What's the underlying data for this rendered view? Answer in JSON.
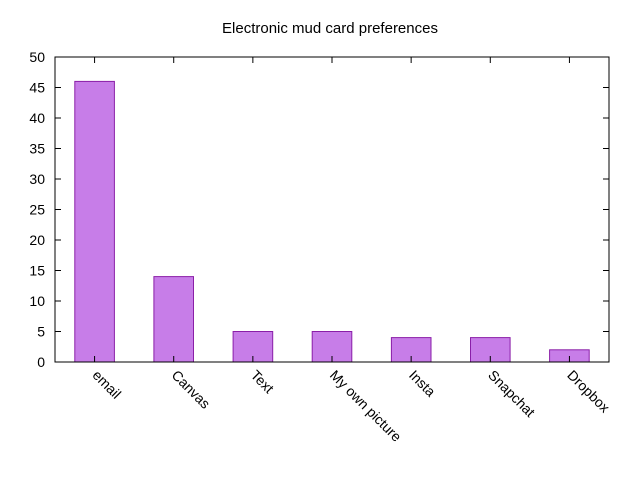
{
  "chart_data": {
    "type": "bar",
    "title": "Electronic mud card preferences",
    "xlabel": "",
    "ylabel": "",
    "categories": [
      "email",
      "Canvas",
      "Text",
      "My own picture",
      "Insta",
      "Snapchat",
      "Dropbox"
    ],
    "values": [
      46,
      14,
      5,
      5,
      4,
      4,
      2
    ],
    "ylim": [
      0,
      50
    ],
    "yticks": [
      0,
      5,
      10,
      15,
      20,
      25,
      30,
      35,
      40,
      45,
      50
    ],
    "grid": false,
    "legend": "none",
    "bar_fill": "#c77de8",
    "bar_stroke": "#8a1fa8"
  }
}
